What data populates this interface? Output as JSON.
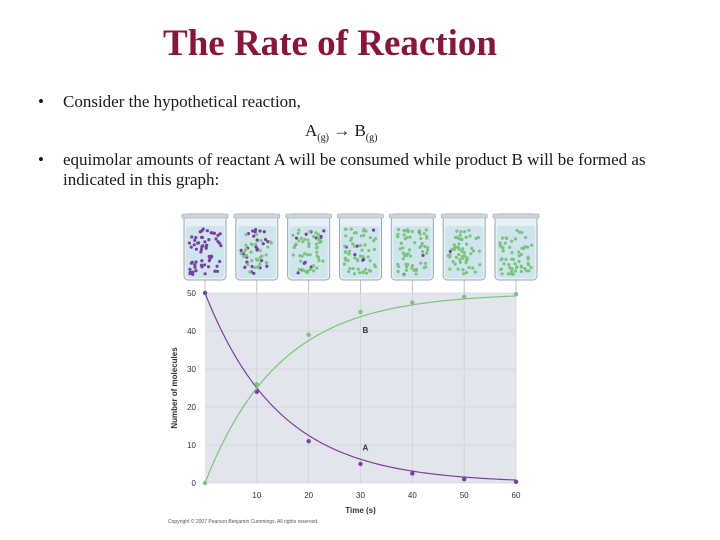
{
  "title": "The Rate of Reaction",
  "bullets": [
    "Consider the hypothetical reaction,",
    "equimolar amounts of reactant A will be consumed while product B will be formed as indicated in this graph:"
  ],
  "bullet_symbol": "•",
  "equation": {
    "reactant": "A",
    "reactant_state": "(g)",
    "arrow": "→",
    "product": "B",
    "product_state": "(g)"
  },
  "colors": {
    "title": "#8a1538",
    "A": "#7b3fa0",
    "B": "#7cc47c",
    "plot_bg": "#e2e5ec"
  },
  "chart_data": {
    "type": "line",
    "xlabel": "Time (s)",
    "ylabel": "Number of molecules",
    "x": [
      0,
      10,
      20,
      30,
      40,
      50,
      60
    ],
    "xlim": [
      0,
      60
    ],
    "ylim": [
      0,
      50
    ],
    "yticks": [
      0,
      10,
      20,
      30,
      40,
      50
    ],
    "xticks": [
      10,
      20,
      30,
      40,
      50,
      60
    ],
    "series": [
      {
        "name": "A",
        "values": [
          50,
          24,
          11,
          5,
          2.5,
          1,
          0.3
        ]
      },
      {
        "name": "B",
        "values": [
          0,
          26,
          39,
          45,
          47.5,
          49,
          49.7
        ]
      }
    ],
    "copyright": "Copyright © 2007 Pearson Benjamin Cummings. All rights reserved."
  }
}
